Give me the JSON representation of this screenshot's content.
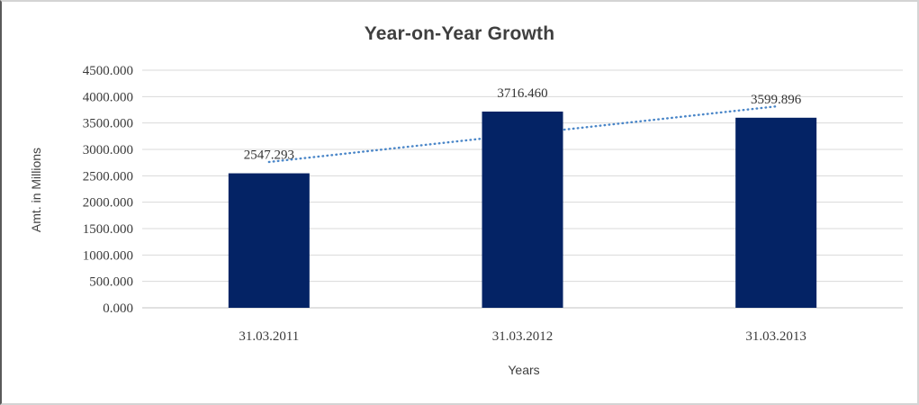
{
  "chart_data": {
    "type": "bar",
    "title": "Year-on-Year Growth",
    "xlabel": "Years",
    "ylabel": "Amt. in Millions",
    "categories": [
      "31.03.2011",
      "31.03.2012",
      "31.03.2013"
    ],
    "values": [
      2547.293,
      3716.46,
      3599.896
    ],
    "value_labels": [
      "2547.293",
      "3716.460",
      "3599.896"
    ],
    "ylim": [
      0,
      4500
    ],
    "ytick_step": 500,
    "ytick_labels": [
      "0.000",
      "500.000",
      "1000.000",
      "1500.000",
      "2000.000",
      "2500.000",
      "3000.000",
      "3500.000",
      "4000.000",
      "4500.000"
    ],
    "grid": "horizontal",
    "legend": "none",
    "trendline": {
      "type": "linear",
      "style": "dotted"
    }
  },
  "colors": {
    "bar": "#042365",
    "trendline": "#4a86c8",
    "gridline": "#d9d9d9",
    "axis_line": "#c3c3c3",
    "title_text": "#3f3f3f",
    "tick_text": "#3b3b3b"
  }
}
